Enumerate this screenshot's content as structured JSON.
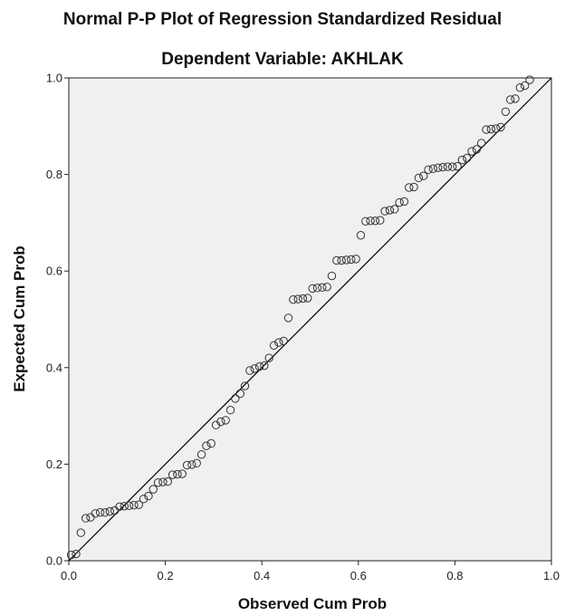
{
  "chart_data": {
    "type": "scatter",
    "title": "Normal P-P Plot of Regression Standardized Residual",
    "subtitle": "Dependent Variable: AKHLAK",
    "xlabel": "Observed Cum Prob",
    "ylabel": "Expected Cum Prob",
    "xlim": [
      0.0,
      1.0
    ],
    "ylim": [
      0.0,
      1.0
    ],
    "x_ticks": [
      "0.0",
      "0.2",
      "0.4",
      "0.6",
      "0.8",
      "1.0"
    ],
    "y_ticks": [
      "0.0",
      "0.2",
      "0.4",
      "0.6",
      "0.8",
      "1.0"
    ],
    "grid": false,
    "reference_line": [
      [
        0.0,
        0.0
      ],
      [
        1.0,
        1.0
      ]
    ],
    "colors": {
      "plot_background": "#f0f0f0",
      "marker_stroke": "#333333",
      "line": "#000000"
    },
    "points": [
      [
        0.005,
        0.012
      ],
      [
        0.015,
        0.014
      ],
      [
        0.025,
        0.058
      ],
      [
        0.035,
        0.088
      ],
      [
        0.045,
        0.09
      ],
      [
        0.055,
        0.098
      ],
      [
        0.065,
        0.1
      ],
      [
        0.075,
        0.1
      ],
      [
        0.085,
        0.102
      ],
      [
        0.095,
        0.104
      ],
      [
        0.105,
        0.112
      ],
      [
        0.115,
        0.113
      ],
      [
        0.125,
        0.114
      ],
      [
        0.135,
        0.115
      ],
      [
        0.145,
        0.116
      ],
      [
        0.155,
        0.128
      ],
      [
        0.165,
        0.134
      ],
      [
        0.175,
        0.148
      ],
      [
        0.185,
        0.162
      ],
      [
        0.195,
        0.163
      ],
      [
        0.205,
        0.164
      ],
      [
        0.215,
        0.178
      ],
      [
        0.225,
        0.179
      ],
      [
        0.235,
        0.18
      ],
      [
        0.245,
        0.198
      ],
      [
        0.255,
        0.199
      ],
      [
        0.265,
        0.202
      ],
      [
        0.275,
        0.22
      ],
      [
        0.285,
        0.238
      ],
      [
        0.295,
        0.243
      ],
      [
        0.305,
        0.281
      ],
      [
        0.315,
        0.288
      ],
      [
        0.325,
        0.291
      ],
      [
        0.335,
        0.312
      ],
      [
        0.345,
        0.336
      ],
      [
        0.355,
        0.346
      ],
      [
        0.365,
        0.362
      ],
      [
        0.375,
        0.394
      ],
      [
        0.385,
        0.398
      ],
      [
        0.395,
        0.402
      ],
      [
        0.405,
        0.404
      ],
      [
        0.415,
        0.42
      ],
      [
        0.425,
        0.446
      ],
      [
        0.435,
        0.452
      ],
      [
        0.445,
        0.455
      ],
      [
        0.455,
        0.503
      ],
      [
        0.465,
        0.541
      ],
      [
        0.475,
        0.542
      ],
      [
        0.485,
        0.543
      ],
      [
        0.495,
        0.544
      ],
      [
        0.505,
        0.564
      ],
      [
        0.515,
        0.565
      ],
      [
        0.525,
        0.566
      ],
      [
        0.535,
        0.567
      ],
      [
        0.545,
        0.59
      ],
      [
        0.555,
        0.622
      ],
      [
        0.565,
        0.622
      ],
      [
        0.575,
        0.623
      ],
      [
        0.585,
        0.624
      ],
      [
        0.595,
        0.625
      ],
      [
        0.605,
        0.674
      ],
      [
        0.615,
        0.703
      ],
      [
        0.625,
        0.704
      ],
      [
        0.635,
        0.704
      ],
      [
        0.645,
        0.705
      ],
      [
        0.655,
        0.724
      ],
      [
        0.665,
        0.726
      ],
      [
        0.675,
        0.728
      ],
      [
        0.685,
        0.742
      ],
      [
        0.695,
        0.744
      ],
      [
        0.705,
        0.773
      ],
      [
        0.715,
        0.774
      ],
      [
        0.725,
        0.793
      ],
      [
        0.735,
        0.797
      ],
      [
        0.745,
        0.81
      ],
      [
        0.755,
        0.812
      ],
      [
        0.765,
        0.814
      ],
      [
        0.775,
        0.815
      ],
      [
        0.785,
        0.816
      ],
      [
        0.795,
        0.816
      ],
      [
        0.805,
        0.817
      ],
      [
        0.815,
        0.83
      ],
      [
        0.825,
        0.834
      ],
      [
        0.835,
        0.848
      ],
      [
        0.845,
        0.852
      ],
      [
        0.855,
        0.865
      ],
      [
        0.865,
        0.893
      ],
      [
        0.875,
        0.894
      ],
      [
        0.885,
        0.895
      ],
      [
        0.895,
        0.898
      ],
      [
        0.905,
        0.93
      ],
      [
        0.915,
        0.955
      ],
      [
        0.925,
        0.957
      ],
      [
        0.935,
        0.98
      ],
      [
        0.945,
        0.984
      ],
      [
        0.955,
        0.996
      ]
    ]
  }
}
